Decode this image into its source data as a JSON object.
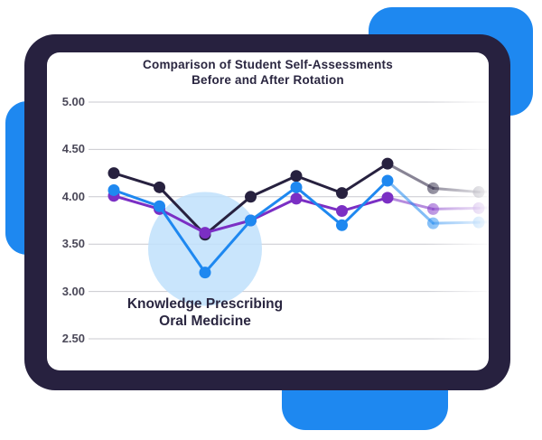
{
  "chart_data": {
    "type": "line",
    "title_lines": [
      "Comparison of Student Self-Assessments",
      "Before and After Rotation"
    ],
    "y_ticks": [
      "5.00",
      "4.50",
      "4.00",
      "3.50",
      "3.00",
      "2.50"
    ],
    "ylim": [
      2.5,
      5.0
    ],
    "grid": true,
    "x": [
      1,
      2,
      3,
      4,
      5,
      6,
      7,
      8,
      9
    ],
    "series": [
      {
        "values": [
          4.25,
          4.1,
          3.6,
          4.0,
          4.22,
          4.04,
          4.35,
          4.09,
          4.05
        ],
        "color": "#27213f"
      },
      {
        "values": [
          4.01,
          3.87,
          3.62,
          3.75,
          3.98,
          3.85,
          3.99,
          3.87,
          3.88
        ],
        "color": "#7b2fc4"
      },
      {
        "values": [
          4.07,
          3.9,
          3.2,
          3.75,
          4.1,
          3.7,
          4.17,
          3.72,
          3.73
        ],
        "color": "#1e88f0"
      }
    ],
    "highlight": {
      "x": 3,
      "y": 3.45,
      "color": "#bfe0fb",
      "label_lines": [
        "Knowledge Prescribing",
        "Oral Medicine"
      ]
    }
  }
}
